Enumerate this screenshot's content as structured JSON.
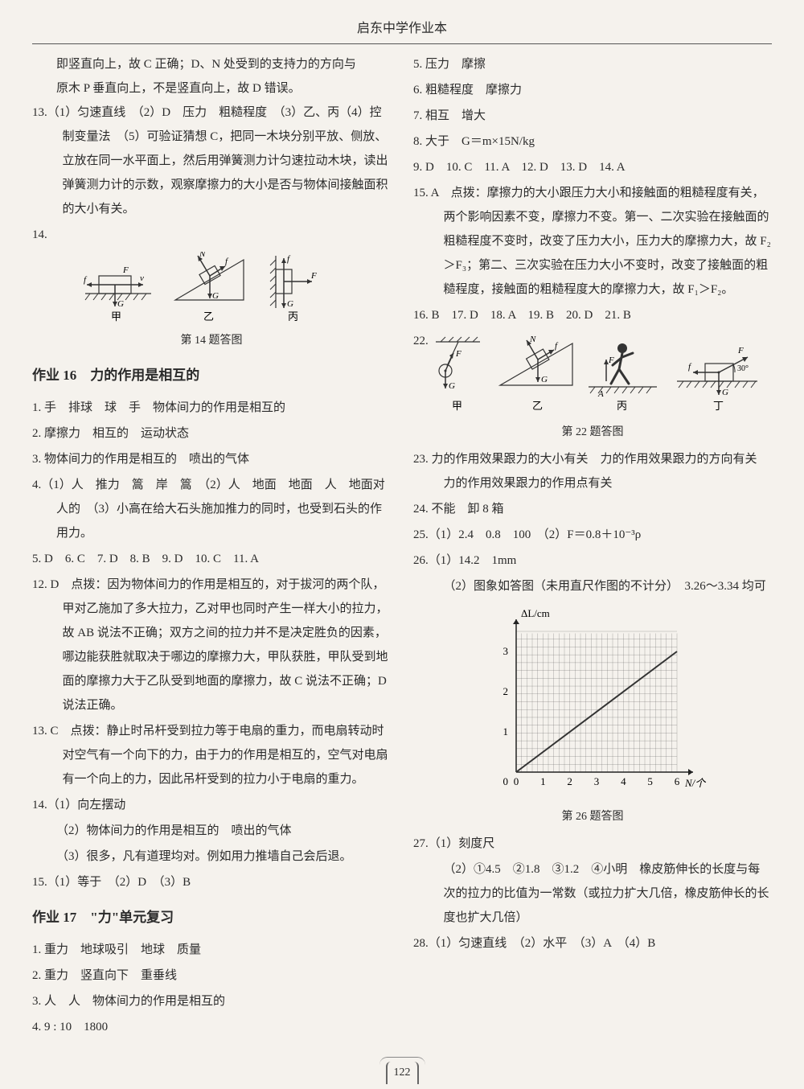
{
  "header": {
    "title": "启东中学作业本"
  },
  "pageNumber": "122",
  "left": {
    "intro_lines": [
      "即竖直向上，故 C 正确；D、N 处受到的支持力的方向与",
      "原木 P 垂直向上，不是竖直向上，故 D 错误。"
    ],
    "q13": "13.（1）匀速直线　（2）D　压力　粗糙程度　（3）乙、丙（4）控制变量法　（5）可验证猜想 C，把同一木块分别平放、侧放、立放在同一水平面上，然后用弹簧测力计匀速拉动木块，读出弹簧测力计的示数，观察摩擦力的大小是否与物体间接触面积的大小有关。",
    "q14_label": "14.",
    "q14_caption": "第 14 题答图",
    "q14_sublabels": {
      "a": "甲",
      "b": "乙",
      "c": "丙"
    },
    "section16_title": "作业 16　力的作用是相互的",
    "s16": {
      "q1": "1. 手　排球　球　手　物体间力的作用是相互的",
      "q2": "2. 摩擦力　相互的　运动状态",
      "q3": "3. 物体间力的作用是相互的　喷出的气体",
      "q4": "4.（1）人　推力　篙　岸　篙　（2）人　地面　地面　人　地面对人的　（3）小高在给大石头施加推力的同时，也受到石头的作用力。",
      "mc": "5. D　6. C　7. D　8. B　9. D　10. C　11. A",
      "q12": "12. D　点拨：因为物体间力的作用是相互的，对于拔河的两个队，甲对乙施加了多大拉力，乙对甲也同时产生一样大小的拉力，故 AB 说法不正确；双方之间的拉力并不是决定胜负的因素，哪边能获胜就取决于哪边的摩擦力大，甲队获胜，甲队受到地面的摩擦力大于乙队受到地面的摩擦力，故 C 说法不正确；D 说法正确。",
      "q13": "13. C　点拨：静止时吊杆受到拉力等于电扇的重力，而电扇转动时对空气有一个向下的力，由于力的作用是相互的，空气对电扇有一个向上的力，因此吊杆受到的拉力小于电扇的重力。",
      "q14a": "14.（1）向左摆动",
      "q14b": "（2）物体间力的作用是相互的　喷出的气体",
      "q14c": "（3）很多，凡有道理均对。例如用力推墙自己会后退。",
      "q15": "15.（1）等于　（2）D　（3）B"
    },
    "section17_title": "作业 17　\"力\"单元复习",
    "s17": {
      "q1": "1. 重力　地球吸引　地球　质量",
      "q2": "2. 重力　竖直向下　重垂线",
      "q3": "3. 人　人　物体间力的作用是相互的",
      "q4": "4. 9 : 10　1800"
    }
  },
  "right": {
    "top": {
      "q5": "5. 压力　摩擦",
      "q6": "6. 粗糙程度　摩擦力",
      "q7": "7. 相互　增大",
      "q8": "8. 大于　G＝m×15N/kg",
      "mc": "9. D　10. C　11. A　12. D　13. D　14. A",
      "q15": "15. A　点拨：摩擦力的大小跟压力大小和接触面的粗糙程度有关，两个影响因素不变，摩擦力不变。第一、二次实验在接触面的粗糙程度不变时，改变了压力大小，压力大的摩擦力大，故 F₂＞F₃；第二、三次实验在压力大小不变时，改变了接触面的粗糙程度，接触面的粗糙程度大的摩擦力大，故 F₁＞F₂。",
      "mc2": "16. B　17. D　18. A　19. B　20. D　21. B"
    },
    "q22_label": "22.",
    "q22_caption": "第 22 题答图",
    "q22_sublabels": {
      "a": "甲",
      "b": "乙",
      "c": "丙",
      "d": "丁"
    },
    "q23": "23. 力的作用效果跟力的大小有关　力的作用效果跟力的方向有关　力的作用效果跟力的作用点有关",
    "q24": "24. 不能　卸 8 箱",
    "q25": "25.（1）2.4　0.8　100　（2）F＝0.8＋10⁻³ρ",
    "q26a": "26.（1）14.2　1mm",
    "q26b": "（2）图象如答图（未用直尺作图的不计分）　3.26～3.34 均可",
    "chart": {
      "type": "line",
      "xlabel": "N/个",
      "ylabel": "ΔL/cm",
      "xlim": [
        0,
        6
      ],
      "ylim": [
        0,
        3.5
      ],
      "xticks": [
        0,
        1,
        2,
        3,
        4,
        5,
        6
      ],
      "yticks": [
        0,
        1,
        2,
        3
      ],
      "grid_divisions": 30,
      "line_color": "#333333",
      "grid_color": "#555555",
      "background_color": "#f5f2ed",
      "points": [
        [
          0,
          0
        ],
        [
          6,
          3
        ]
      ]
    },
    "q26_caption": "第 26 题答图",
    "q27a": "27.（1）刻度尺",
    "q27b": "（2）①4.5　②1.8　③1.2　④小明　橡皮筋伸长的长度与每次的拉力的比值为一常数（或拉力扩大几倍，橡皮筋伸长的长度也扩大几倍）",
    "q28": "28.（1）匀速直线　（2）水平　（3）A　（4）B"
  }
}
